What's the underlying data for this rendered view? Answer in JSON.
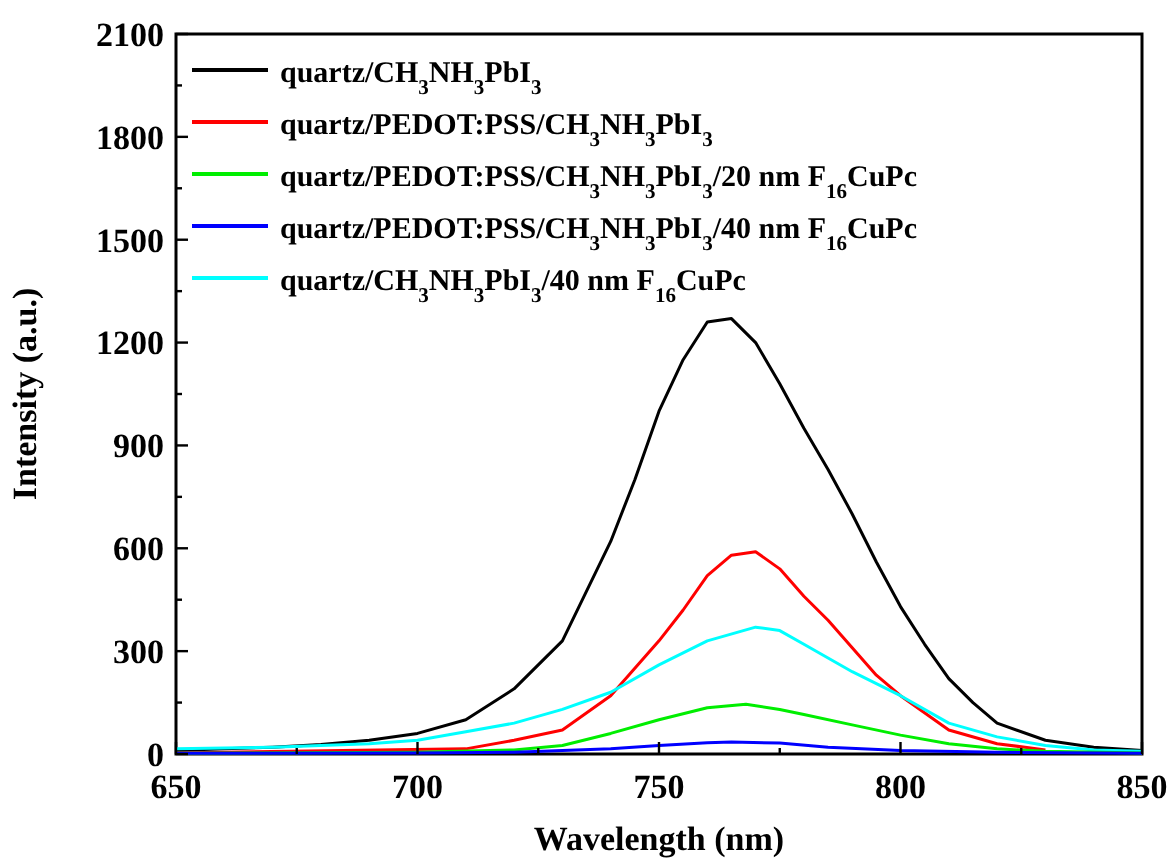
{
  "chart_data": {
    "type": "line",
    "xlabel": "Wavelength (nm)",
    "ylabel": "Intensity (a.u.)",
    "xlim": [
      650,
      850
    ],
    "ylim": [
      0,
      2100
    ],
    "xticks": [
      650,
      {
        "value": 675,
        "label": null
      },
      700,
      {
        "value": 725,
        "label": null
      },
      750,
      {
        "value": 775,
        "label": null
      },
      800,
      {
        "value": 825,
        "label": null
      },
      850
    ],
    "yticks": [
      0,
      {
        "value": 150,
        "label": null
      },
      300,
      {
        "value": 450,
        "label": null
      },
      600,
      {
        "value": 750,
        "label": null
      },
      900,
      {
        "value": 1050,
        "label": null
      },
      1200,
      {
        "value": 1350,
        "label": null
      },
      1500,
      {
        "value": 1650,
        "label": null
      },
      1800,
      {
        "value": 1950,
        "label": null
      },
      2100
    ],
    "legend": "top left",
    "grid": false,
    "marker": "none",
    "line_style": "solid",
    "series": [
      {
        "name": "quartz/CH$_{3}$NH$_{3}$PbI$_{3}$",
        "color": "#000000",
        "x": [
          650,
          660,
          670,
          680,
          690,
          700,
          710,
          720,
          730,
          740,
          745,
          750,
          755,
          760,
          765,
          770,
          775,
          780,
          785,
          790,
          795,
          800,
          805,
          810,
          815,
          820,
          830,
          840,
          850
        ],
        "values": [
          10,
          15,
          20,
          28,
          40,
          60,
          100,
          190,
          330,
          620,
          800,
          1000,
          1150,
          1260,
          1270,
          1200,
          1080,
          950,
          830,
          700,
          560,
          430,
          320,
          220,
          150,
          90,
          40,
          20,
          10
        ]
      },
      {
        "name": "quartz/PEDOT:PSS/CH$_{3}$NH$_{3}$PbI$_{3}$",
        "color": "#ff0000",
        "x": [
          650,
          710,
          720,
          730,
          740,
          750,
          755,
          760,
          765,
          770,
          775,
          780,
          785,
          790,
          795,
          800,
          810,
          820,
          830
        ],
        "values": [
          3,
          15,
          40,
          70,
          170,
          330,
          420,
          520,
          580,
          590,
          540,
          460,
          390,
          310,
          230,
          170,
          70,
          30,
          12
        ]
      },
      {
        "name": "quartz/PEDOT:PSS/CH$_{3}$NH$_{3}$PbI$_{3}$/20 nm F$_{16}$CuPc",
        "color": "#00ee00",
        "x": [
          650,
          700,
          720,
          730,
          740,
          750,
          760,
          768,
          775,
          780,
          790,
          800,
          810,
          820,
          830,
          850
        ],
        "values": [
          2,
          5,
          12,
          25,
          60,
          100,
          135,
          145,
          130,
          115,
          85,
          55,
          30,
          15,
          8,
          3
        ]
      },
      {
        "name": "quartz/PEDOT:PSS/CH$_{3}$NH$_{3}$PbI$_{3}$/40 nm F$_{16}$CuPc",
        "color": "#0000ff",
        "x": [
          650,
          700,
          720,
          740,
          750,
          760,
          765,
          775,
          785,
          800,
          820,
          850
        ],
        "values": [
          2,
          3,
          5,
          15,
          25,
          33,
          35,
          32,
          20,
          10,
          5,
          2
        ]
      },
      {
        "name": "quartz/CH$_{3}$NH$_{3}$PbI$_{3}$/40 nm F$_{16}$CuPc",
        "color": "#00ffff",
        "x": [
          650,
          670,
          690,
          700,
          710,
          720,
          730,
          740,
          750,
          760,
          770,
          775,
          780,
          790,
          800,
          810,
          820,
          830,
          840,
          850
        ],
        "values": [
          15,
          20,
          30,
          40,
          65,
          90,
          130,
          180,
          260,
          330,
          370,
          360,
          320,
          240,
          170,
          90,
          50,
          25,
          12,
          8
        ]
      }
    ]
  }
}
